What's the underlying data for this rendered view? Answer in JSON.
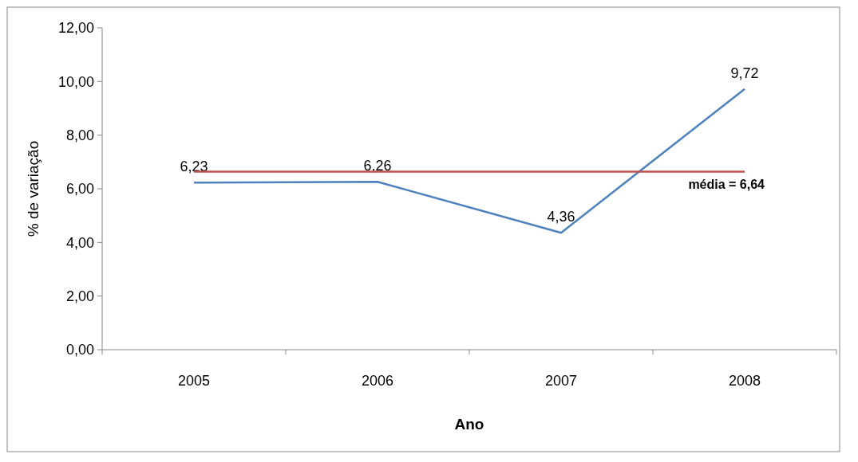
{
  "chart_data": {
    "type": "line",
    "xlabel": "Ano",
    "ylabel": "% de variação",
    "categories": [
      "2005",
      "2006",
      "2007",
      "2008"
    ],
    "series": [
      {
        "color": "#4f81bd",
        "values": [
          6.23,
          6.26,
          4.36,
          9.72
        ],
        "value_labels": [
          "6,23",
          "6,26",
          "4,36",
          "9,72"
        ]
      }
    ],
    "ylim": [
      0,
      12
    ],
    "yticks": [
      {
        "value": 0,
        "label": "0,00"
      },
      {
        "value": 2,
        "label": "2,00"
      },
      {
        "value": 4,
        "label": "4,00"
      },
      {
        "value": 6,
        "label": "6,00"
      },
      {
        "value": 8,
        "label": "8,00"
      },
      {
        "value": 10,
        "label": "10,00"
      },
      {
        "value": 12,
        "label": "12,00"
      }
    ],
    "ref_lines": [
      {
        "axis": "y",
        "value": 6.64,
        "label": "média = 6,64",
        "color": "#c0504d"
      }
    ],
    "grid": false,
    "marker": "none",
    "line_style": "solid"
  }
}
